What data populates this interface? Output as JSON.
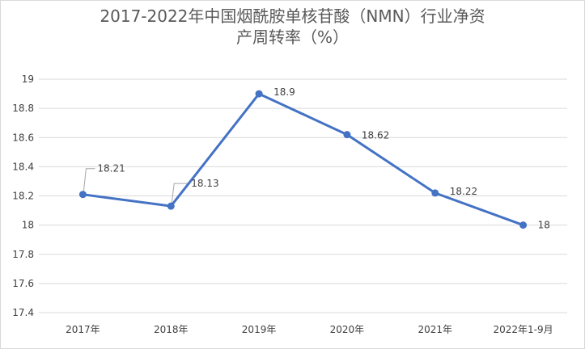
{
  "chart_data": {
    "type": "line",
    "title_line1": "2017-2022年中国烟酰胺单核苷酸（NMN）行业净资",
    "title_line2": "产周转率（%）",
    "categories": [
      "2017年",
      "2018年",
      "2019年",
      "2020年",
      "2021年",
      "2022年1-9月"
    ],
    "series": [
      {
        "values": [
          18.21,
          18.13,
          18.9,
          18.62,
          18.22,
          18
        ],
        "labels": [
          "18.21",
          "18.13",
          "18.9",
          "18.62",
          "18.22",
          "18"
        ],
        "color": "#4472c4"
      }
    ],
    "ylim": [
      17.4,
      19
    ],
    "yticks": [
      "17.4",
      "17.6",
      "17.8",
      "18",
      "18.2",
      "18.4",
      "18.6",
      "18.8",
      "19"
    ],
    "grid": true
  }
}
